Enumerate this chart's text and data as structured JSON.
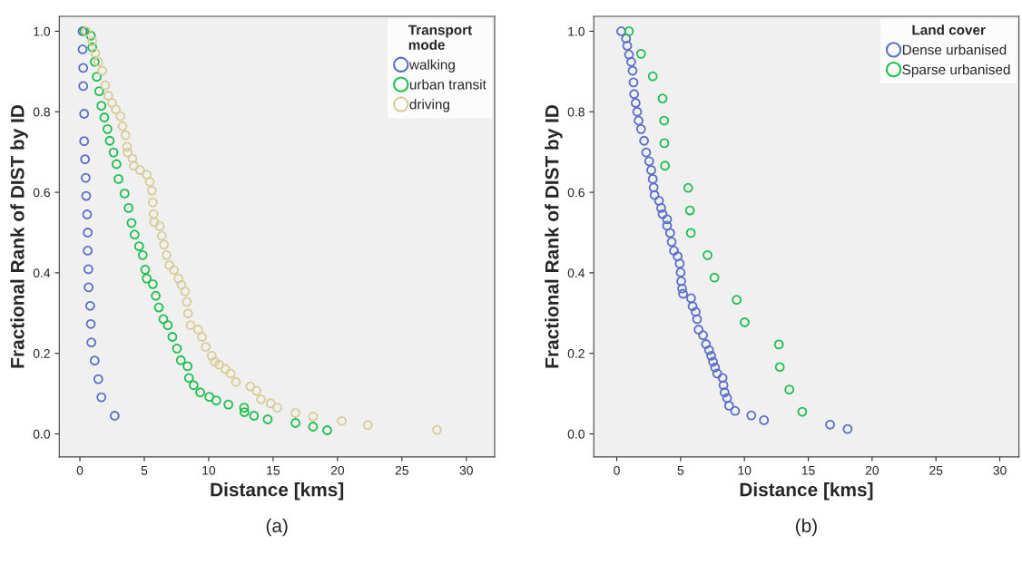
{
  "chart_data": [
    {
      "type": "scatter",
      "xlabel": "Distance [kms]",
      "ylabel": "Fractional Rank of DIST by ID",
      "legend_title": "Transport\nmode",
      "legend": "top right",
      "marker": "circle",
      "grid": false,
      "xlim": [
        -1.6,
        32.2
      ],
      "ylim": [
        -0.057,
        1.037
      ],
      "xticks": [
        0,
        5,
        10,
        15,
        20,
        25,
        30
      ],
      "yticks": [
        {
          "value": 0,
          "label": "0.0"
        },
        {
          "value": 0.2,
          "label": "0.2"
        },
        {
          "value": 0.4,
          "label": "0.4"
        },
        {
          "value": 0.6,
          "label": "0.6"
        },
        {
          "value": 0.8,
          "label": "0.8"
        },
        {
          "value": 1,
          "label": "1.0"
        }
      ],
      "annotations": [
        "(a)"
      ],
      "series": [
        {
          "name": "walking",
          "color": "#5a6fc6",
          "x": [
            0.21,
            0.21,
            0.26,
            0.26,
            0.33,
            0.33,
            0.4,
            0.45,
            0.49,
            0.56,
            0.61,
            0.61,
            0.66,
            0.68,
            0.8,
            0.85,
            0.89,
            1.15,
            1.43,
            1.67,
            2.7
          ],
          "values": [
            1.0,
            0.955,
            0.909,
            0.864,
            0.795,
            0.727,
            0.682,
            0.636,
            0.591,
            0.545,
            0.5,
            0.455,
            0.409,
            0.364,
            0.318,
            0.273,
            0.227,
            0.182,
            0.136,
            0.091,
            0.045
          ]
        },
        {
          "name": "urban transit",
          "color": "#1fbf4f",
          "x": [
            0.33,
            0.85,
            0.96,
            1.15,
            1.31,
            1.5,
            1.67,
            1.9,
            2.14,
            2.32,
            2.61,
            2.84,
            3.0,
            3.47,
            3.78,
            4.01,
            4.25,
            4.6,
            4.88,
            5.07,
            5.19,
            5.66,
            5.89,
            6.13,
            6.48,
            6.83,
            7.18,
            7.54,
            7.84,
            8.36,
            8.47,
            8.83,
            9.34,
            10.05,
            10.59,
            11.53,
            12.75,
            12.77,
            13.52,
            14.58,
            16.74,
            18.1,
            19.2
          ],
          "values": [
            1.0,
            0.989,
            0.96,
            0.924,
            0.887,
            0.851,
            0.815,
            0.786,
            0.757,
            0.728,
            0.699,
            0.67,
            0.633,
            0.597,
            0.561,
            0.524,
            0.495,
            0.466,
            0.444,
            0.408,
            0.386,
            0.372,
            0.343,
            0.314,
            0.285,
            0.27,
            0.241,
            0.212,
            0.183,
            0.168,
            0.139,
            0.121,
            0.103,
            0.092,
            0.083,
            0.073,
            0.065,
            0.054,
            0.045,
            0.036,
            0.027,
            0.018,
            0.009
          ]
        },
        {
          "name": "driving",
          "color": "#d8cd9a",
          "x": [
            0.49,
            0.96,
            1.2,
            1.43,
            1.74,
            1.97,
            2.21,
            2.49,
            2.79,
            3.15,
            3.31,
            3.54,
            3.66,
            3.71,
            4.08,
            4.18,
            4.67,
            5.19,
            5.42,
            5.59,
            5.66,
            5.73,
            5.77,
            6.2,
            6.36,
            6.53,
            6.72,
            6.95,
            7.3,
            7.65,
            7.89,
            8.17,
            8.31,
            8.4,
            8.59,
            9.18,
            9.48,
            9.77,
            10.23,
            10.47,
            10.82,
            11.29,
            11.71,
            12.11,
            13.24,
            13.71,
            14.06,
            14.81,
            15.33,
            16.74,
            18.1,
            20.33,
            22.35,
            27.72
          ],
          "values": [
            1.0,
            0.975,
            0.946,
            0.924,
            0.902,
            0.866,
            0.84,
            0.822,
            0.806,
            0.789,
            0.764,
            0.742,
            0.713,
            0.699,
            0.684,
            0.666,
            0.655,
            0.644,
            0.626,
            0.604,
            0.575,
            0.546,
            0.526,
            0.516,
            0.492,
            0.47,
            0.444,
            0.419,
            0.407,
            0.386,
            0.37,
            0.354,
            0.328,
            0.299,
            0.27,
            0.259,
            0.241,
            0.216,
            0.194,
            0.179,
            0.172,
            0.161,
            0.15,
            0.129,
            0.118,
            0.107,
            0.086,
            0.076,
            0.065,
            0.052,
            0.043,
            0.032,
            0.022,
            0.01
          ]
        }
      ]
    },
    {
      "type": "scatter",
      "xlabel": "Distance [kms]",
      "ylabel": "Fractional Rank of DIST by ID",
      "legend_title": "Land cover",
      "legend": "top right",
      "marker": "circle",
      "grid": false,
      "xlim": [
        -1.8,
        31.5
      ],
      "ylim": [
        -0.057,
        1.037
      ],
      "xticks": [
        0,
        5,
        10,
        15,
        20,
        25,
        30
      ],
      "yticks": [
        {
          "value": 0,
          "label": "0.0"
        },
        {
          "value": 0.2,
          "label": "0.2"
        },
        {
          "value": 0.4,
          "label": "0.4"
        },
        {
          "value": 0.6,
          "label": "0.6"
        },
        {
          "value": 0.8,
          "label": "0.8"
        },
        {
          "value": 1,
          "label": "1.0"
        }
      ],
      "annotations": [
        "(b)"
      ],
      "series": [
        {
          "name": "Dense urbanised",
          "color": "#5a6fc6",
          "x": [
            0.35,
            0.73,
            0.82,
            0.96,
            1.13,
            1.24,
            1.31,
            1.36,
            1.48,
            1.6,
            1.71,
            1.9,
            2.14,
            2.3,
            2.54,
            2.7,
            2.82,
            2.89,
            2.96,
            3.31,
            3.48,
            3.59,
            3.94,
            3.94,
            4.18,
            4.3,
            4.48,
            4.77,
            4.93,
            5.0,
            5.05,
            5.12,
            5.19,
            5.82,
            5.94,
            6.18,
            6.29,
            6.41,
            6.76,
            6.99,
            7.23,
            7.39,
            7.54,
            7.7,
            7.87,
            8.29,
            8.36,
            8.45,
            8.64,
            8.8,
            9.27,
            10.54,
            11.53,
            16.71,
            18.08
          ],
          "values": [
            1.0,
            0.982,
            0.964,
            0.942,
            0.924,
            0.902,
            0.873,
            0.844,
            0.822,
            0.8,
            0.778,
            0.757,
            0.728,
            0.699,
            0.677,
            0.655,
            0.633,
            0.612,
            0.593,
            0.579,
            0.561,
            0.546,
            0.533,
            0.517,
            0.499,
            0.477,
            0.455,
            0.441,
            0.423,
            0.401,
            0.379,
            0.361,
            0.348,
            0.337,
            0.317,
            0.303,
            0.285,
            0.259,
            0.245,
            0.223,
            0.208,
            0.194,
            0.179,
            0.165,
            0.15,
            0.139,
            0.121,
            0.103,
            0.089,
            0.07,
            0.057,
            0.046,
            0.034,
            0.023,
            0.012
          ]
        },
        {
          "name": "Sparse urbanised",
          "color": "#1fbf4f",
          "x": [
            0.96,
            1.9,
            2.82,
            3.59,
            3.71,
            3.73,
            3.78,
            5.59,
            5.73,
            5.8,
            7.11,
            7.65,
            9.39,
            10.02,
            12.7,
            12.77,
            13.52,
            14.53
          ],
          "values": [
            1.0,
            0.944,
            0.888,
            0.833,
            0.778,
            0.722,
            0.666,
            0.611,
            0.555,
            0.499,
            0.444,
            0.388,
            0.333,
            0.277,
            0.222,
            0.166,
            0.11,
            0.055
          ]
        }
      ]
    }
  ]
}
